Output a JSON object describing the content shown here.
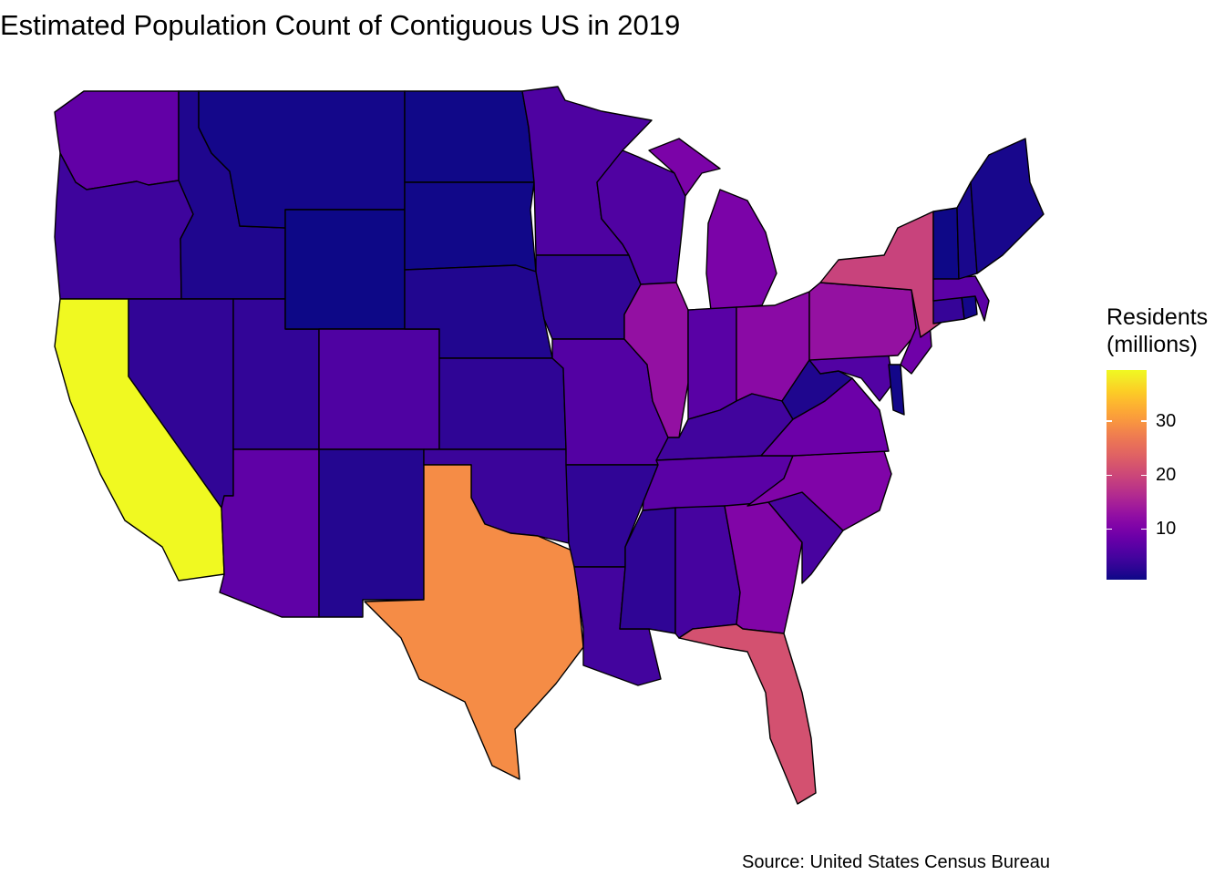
{
  "chart_data": {
    "type": "choropleth",
    "title": "Estimated Population Count of Contiguous US in 2019",
    "caption": "Source: United States Census Bureau",
    "legend": {
      "title_lines": [
        "Residents",
        "(millions)"
      ],
      "position": "right",
      "ticks": [
        10,
        20,
        30
      ],
      "range": [
        0.58,
        39.51
      ],
      "palette": "plasma"
    },
    "units": "millions",
    "regions": [
      {
        "name": "Washington",
        "value": 7.61
      },
      {
        "name": "Oregon",
        "value": 4.22
      },
      {
        "name": "California",
        "value": 39.51
      },
      {
        "name": "Idaho",
        "value": 1.79
      },
      {
        "name": "Nevada",
        "value": 3.08
      },
      {
        "name": "Utah",
        "value": 3.21
      },
      {
        "name": "Arizona",
        "value": 7.28
      },
      {
        "name": "Montana",
        "value": 1.07
      },
      {
        "name": "Wyoming",
        "value": 0.58
      },
      {
        "name": "Colorado",
        "value": 5.76
      },
      {
        "name": "New Mexico",
        "value": 2.1
      },
      {
        "name": "North Dakota",
        "value": 0.76
      },
      {
        "name": "South Dakota",
        "value": 0.88
      },
      {
        "name": "Nebraska",
        "value": 1.93
      },
      {
        "name": "Kansas",
        "value": 2.91
      },
      {
        "name": "Oklahoma",
        "value": 3.96
      },
      {
        "name": "Texas",
        "value": 29.0
      },
      {
        "name": "Minnesota",
        "value": 5.64
      },
      {
        "name": "Iowa",
        "value": 3.16
      },
      {
        "name": "Missouri",
        "value": 6.14
      },
      {
        "name": "Arkansas",
        "value": 3.02
      },
      {
        "name": "Louisiana",
        "value": 4.65
      },
      {
        "name": "Wisconsin",
        "value": 5.82
      },
      {
        "name": "Illinois",
        "value": 12.67
      },
      {
        "name": "Michigan",
        "value": 9.99
      },
      {
        "name": "Indiana",
        "value": 6.73
      },
      {
        "name": "Ohio",
        "value": 11.69
      },
      {
        "name": "Kentucky",
        "value": 4.47
      },
      {
        "name": "Tennessee",
        "value": 6.83
      },
      {
        "name": "Mississippi",
        "value": 2.98
      },
      {
        "name": "Alabama",
        "value": 4.9
      },
      {
        "name": "Georgia",
        "value": 10.62
      },
      {
        "name": "Florida",
        "value": 21.48
      },
      {
        "name": "South Carolina",
        "value": 5.15
      },
      {
        "name": "North Carolina",
        "value": 10.49
      },
      {
        "name": "Virginia",
        "value": 8.54
      },
      {
        "name": "West Virginia",
        "value": 1.79
      },
      {
        "name": "Maryland",
        "value": 6.05
      },
      {
        "name": "Delaware",
        "value": 0.97
      },
      {
        "name": "Pennsylvania",
        "value": 12.8
      },
      {
        "name": "New Jersey",
        "value": 8.88
      },
      {
        "name": "New York",
        "value": 19.45
      },
      {
        "name": "Connecticut",
        "value": 3.57
      },
      {
        "name": "Rhode Island",
        "value": 1.06
      },
      {
        "name": "Massachusetts",
        "value": 6.89
      },
      {
        "name": "Vermont",
        "value": 0.62
      },
      {
        "name": "New Hampshire",
        "value": 1.36
      },
      {
        "name": "Maine",
        "value": 1.34
      }
    ]
  }
}
